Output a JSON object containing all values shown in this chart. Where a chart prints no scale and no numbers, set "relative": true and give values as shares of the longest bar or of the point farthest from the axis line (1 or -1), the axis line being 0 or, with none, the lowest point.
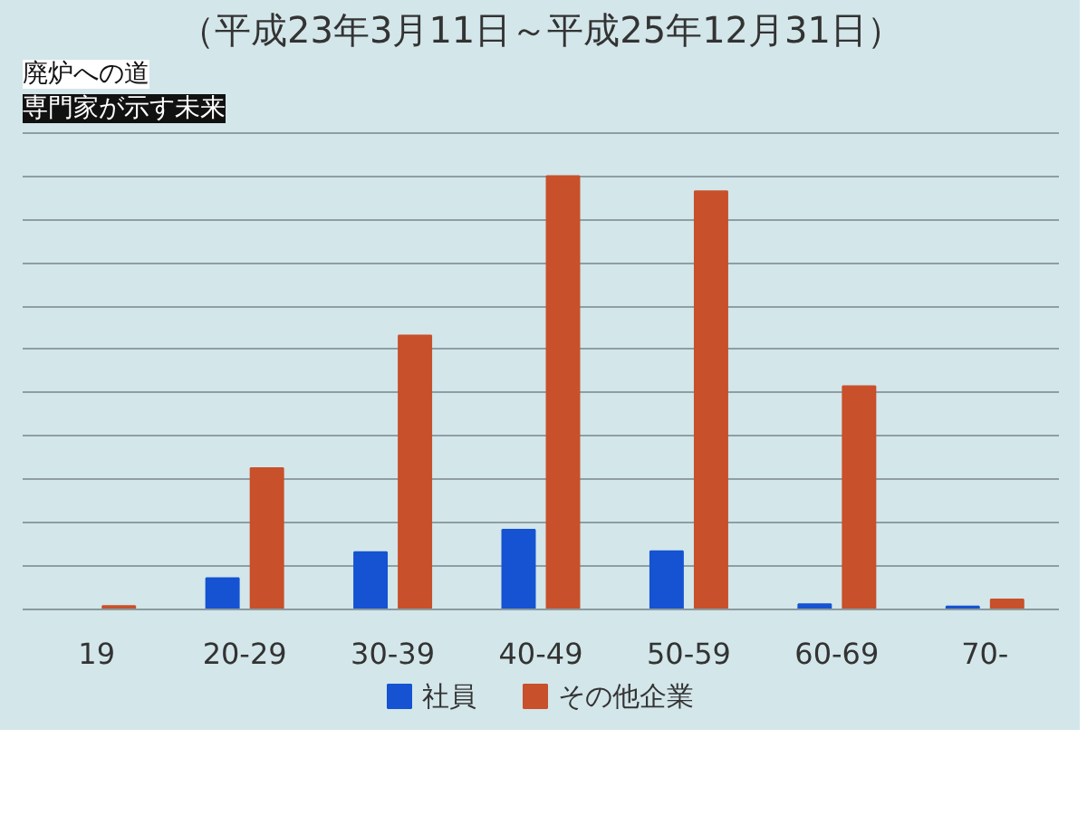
{
  "chart_data": {
    "type": "bar",
    "title": "（平成23年3月11日～平成25年12月31日）",
    "annotations": [
      "廃炉への道",
      "専門家が示す未来"
    ],
    "categories": [
      "19",
      "20-29",
      "30-39",
      "40-49",
      "50-59",
      "60-69",
      "70-"
    ],
    "series": [
      {
        "name": "社員",
        "color": "#1553d2",
        "values": [
          null,
          0.072,
          0.132,
          0.184,
          0.134,
          0.012,
          0.007
        ]
      },
      {
        "name": "その他企業",
        "color": "#c8502a",
        "values": [
          0.008,
          0.326,
          0.632,
          1,
          0.965,
          0.515,
          0.023
        ]
      }
    ],
    "relative": true,
    "grid": "y",
    "legend": "bottom"
  }
}
